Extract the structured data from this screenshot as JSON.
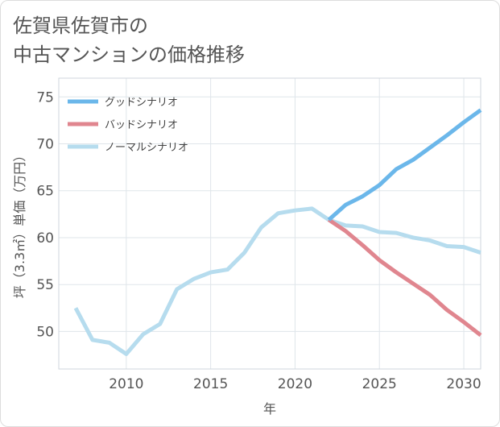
{
  "title_line1": "佐賀県佐賀市の",
  "title_line2": "中古マンションの価格推移",
  "chart_data": {
    "type": "line",
    "xlabel": "年",
    "ylabel": "坪（3.3㎡）単価（万円）",
    "xlim": [
      2006,
      2031
    ],
    "ylim": [
      46,
      77
    ],
    "x_ticks": [
      2010,
      2015,
      2020,
      2025,
      2030
    ],
    "y_ticks": [
      50,
      55,
      60,
      65,
      70,
      75
    ],
    "grid": true,
    "legend_position": "top-left",
    "series": [
      {
        "name": "グッドシナリオ",
        "color": "#6bb7ea",
        "x": [
          2022,
          2023,
          2024,
          2025,
          2026,
          2027,
          2028,
          2029,
          2030,
          2031
        ],
        "y": [
          61.9,
          63.5,
          64.4,
          65.6,
          67.3,
          68.3,
          69.6,
          70.9,
          72.3,
          73.6
        ]
      },
      {
        "name": "バッドシナリオ",
        "color": "#e0868f",
        "x": [
          2022,
          2023,
          2024,
          2025,
          2026,
          2027,
          2028,
          2029,
          2030,
          2031
        ],
        "y": [
          61.9,
          60.7,
          59.2,
          57.6,
          56.3,
          55.1,
          53.9,
          52.3,
          51.0,
          49.6
        ]
      },
      {
        "name": "ノーマルシナリオ",
        "color": "#b6dcee",
        "x": [
          2007,
          2008,
          2009,
          2010,
          2011,
          2012,
          2013,
          2014,
          2015,
          2016,
          2017,
          2018,
          2019,
          2020,
          2021,
          2022,
          2023,
          2024,
          2025,
          2026,
          2027,
          2028,
          2029,
          2030,
          2031
        ],
        "y": [
          52.5,
          49.1,
          48.8,
          47.6,
          49.7,
          50.8,
          54.5,
          55.6,
          56.3,
          56.6,
          58.4,
          61.1,
          62.6,
          62.9,
          63.1,
          61.9,
          61.3,
          61.2,
          60.6,
          60.5,
          60.0,
          59.7,
          59.1,
          59.0,
          58.4
        ]
      }
    ]
  }
}
